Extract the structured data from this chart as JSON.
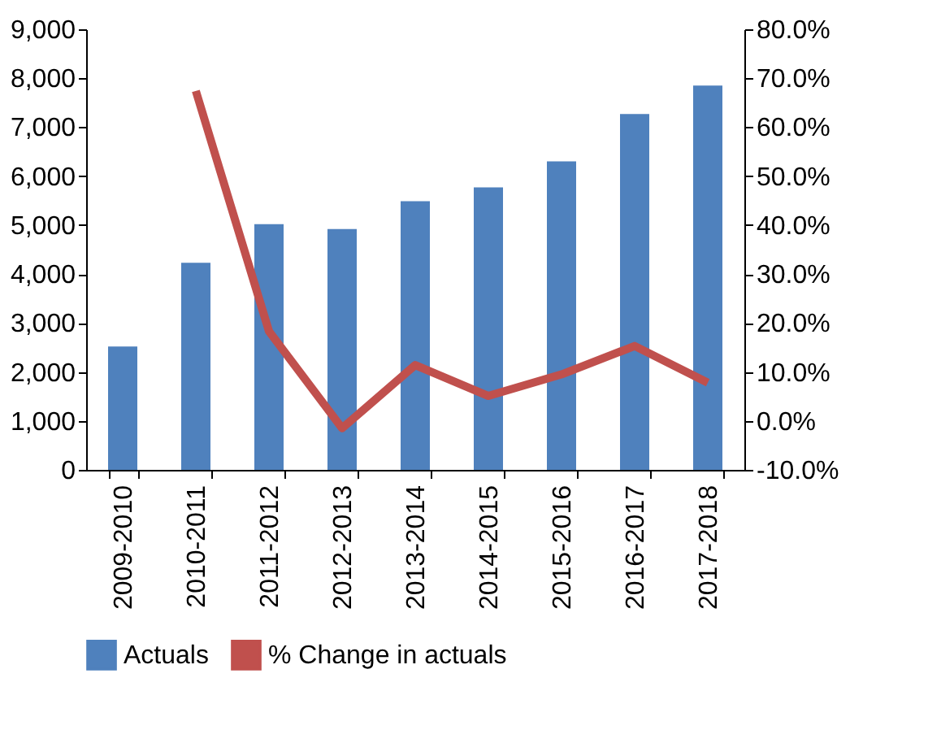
{
  "chart_data": {
    "type": "bar",
    "categories": [
      "2009-2010",
      "2010-2011",
      "2011-2012",
      "2012-2013",
      "2013-2014",
      "2014-2015",
      "2015-2016",
      "2016-2017",
      "2017-2018"
    ],
    "series": [
      {
        "name": "Actuals",
        "color": "#4f81bd",
        "values": [
          2520,
          4230,
          5020,
          4920,
          5490,
          5770,
          6300,
          7270,
          7850
        ]
      },
      {
        "name": "% Change in actuals",
        "type": "line",
        "axis": "y2",
        "color": "#c0504d",
        "values": [
          null,
          67.4,
          18.3,
          -1.5,
          11.4,
          5.1,
          9.5,
          15.3,
          7.8
        ]
      }
    ],
    "ylim": [
      0,
      9000
    ],
    "yticks": [
      {
        "value": 0,
        "label": "0"
      },
      {
        "value": 1000,
        "label": "1,000"
      },
      {
        "value": 2000,
        "label": "2,000"
      },
      {
        "value": 3000,
        "label": "3,000"
      },
      {
        "value": 4000,
        "label": "4,000"
      },
      {
        "value": 5000,
        "label": "5,000"
      },
      {
        "value": 6000,
        "label": "6,000"
      },
      {
        "value": 7000,
        "label": "7,000"
      },
      {
        "value": 8000,
        "label": "8,000"
      },
      {
        "value": 9000,
        "label": "9,000"
      }
    ],
    "y2lim": [
      -10,
      80
    ],
    "y2ticks": [
      {
        "value": -10,
        "label": "-10.0%"
      },
      {
        "value": 0,
        "label": "0.0%"
      },
      {
        "value": 10,
        "label": "10.0%"
      },
      {
        "value": 20,
        "label": "20.0%"
      },
      {
        "value": 30,
        "label": "30.0%"
      },
      {
        "value": 40,
        "label": "40.0%"
      },
      {
        "value": 50,
        "label": "50.0%"
      },
      {
        "value": 60,
        "label": "60.0%"
      },
      {
        "value": 70,
        "label": "70.0%"
      },
      {
        "value": 80,
        "label": "80.0%"
      }
    ],
    "grid": false,
    "legend": "bottom",
    "marker": "none",
    "line_style": "solid"
  }
}
